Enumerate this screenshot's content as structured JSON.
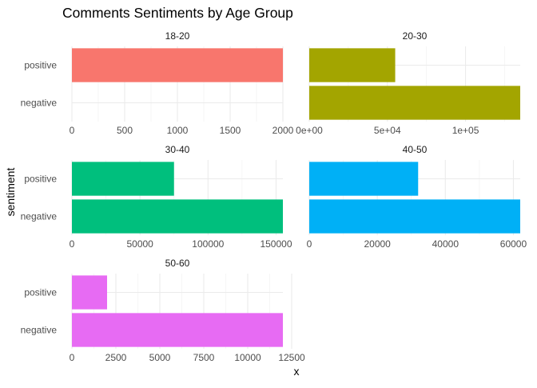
{
  "chart_data": {
    "type": "bar",
    "orientation": "horizontal",
    "title": "Comments Sentiments by Age Group",
    "xlabel": "x",
    "ylabel": "sentiment",
    "categories": [
      "positive",
      "negative"
    ],
    "facets": [
      {
        "name": "18-20",
        "color": "#F8766D",
        "values": [
          2000,
          0
        ],
        "xlim": [
          0,
          2000
        ],
        "ticks": [
          0,
          500,
          1000,
          1500,
          2000
        ],
        "tick_labels": [
          "0",
          "500",
          "1000",
          "1500",
          "2000"
        ]
      },
      {
        "name": "20-30",
        "color": "#A3A500",
        "values": [
          55000,
          135000
        ],
        "xlim": [
          0,
          135000
        ],
        "ticks": [
          0,
          50000,
          100000
        ],
        "tick_labels": [
          "0e+00",
          "5e+04",
          "1e+05"
        ]
      },
      {
        "name": "30-40",
        "color": "#00BF7D",
        "values": [
          75000,
          155000
        ],
        "xlim": [
          0,
          155000
        ],
        "ticks": [
          0,
          50000,
          100000,
          150000
        ],
        "tick_labels": [
          "0",
          "50000",
          "100000",
          "150000"
        ]
      },
      {
        "name": "40-50",
        "color": "#00B0F6",
        "values": [
          32000,
          62000
        ],
        "xlim": [
          0,
          62000
        ],
        "ticks": [
          0,
          20000,
          40000,
          60000
        ],
        "tick_labels": [
          "0",
          "20000",
          "40000",
          "60000"
        ]
      },
      {
        "name": "50-60",
        "color": "#E76BF3",
        "values": [
          2000,
          12000
        ],
        "xlim": [
          0,
          12000
        ],
        "ticks": [
          0,
          2500,
          5000,
          7500,
          10000,
          12500
        ],
        "tick_labels": [
          "0",
          "2500",
          "5000",
          "7500",
          "10000",
          "12500"
        ]
      }
    ],
    "grid": true,
    "legend": "none"
  }
}
